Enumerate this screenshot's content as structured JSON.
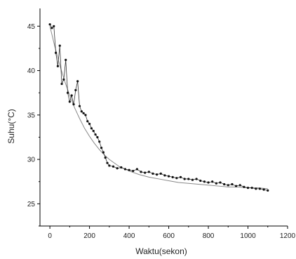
{
  "chart_data": {
    "type": "scatter",
    "xlabel": "Waktu(sekon)",
    "ylabel": "Suhu(°C)",
    "xlim": [
      -50,
      1200
    ],
    "ylim": [
      22.5,
      47
    ],
    "xticks": [
      0,
      200,
      400,
      600,
      800,
      1000,
      1200
    ],
    "yticks": [
      25,
      30,
      35,
      40,
      45
    ],
    "grid": false,
    "legend": "none",
    "colors": {
      "points": "#111111",
      "line": "#333333",
      "fit": "#888888",
      "axis": "#000000"
    },
    "series": [
      {
        "kind": "measured",
        "x": [
          0,
          10,
          20,
          30,
          40,
          50,
          60,
          70,
          80,
          90,
          100,
          110,
          120,
          130,
          140,
          150,
          160,
          170,
          180,
          190,
          200,
          210,
          220,
          230,
          240,
          250,
          260,
          270,
          280,
          290,
          300,
          320,
          340,
          360,
          380,
          400,
          420,
          440,
          460,
          480,
          500,
          520,
          540,
          560,
          580,
          600,
          620,
          640,
          660,
          680,
          700,
          720,
          740,
          760,
          780,
          800,
          820,
          840,
          860,
          880,
          900,
          920,
          940,
          960,
          980,
          1000,
          1020,
          1040,
          1060,
          1080,
          1100
        ],
        "y": [
          45.2,
          44.8,
          45.0,
          42.0,
          40.5,
          42.8,
          38.5,
          39.0,
          41.2,
          37.5,
          36.5,
          37.2,
          36.2,
          37.8,
          38.8,
          36.0,
          35.4,
          35.2,
          35.0,
          34.3,
          34.0,
          33.5,
          33.2,
          32.8,
          32.5,
          32.0,
          31.3,
          30.8,
          30.2,
          29.6,
          29.3,
          29.2,
          29.0,
          29.1,
          28.9,
          28.8,
          28.7,
          28.9,
          28.6,
          28.5,
          28.6,
          28.4,
          28.3,
          28.4,
          28.2,
          28.1,
          28.0,
          27.9,
          28.0,
          27.8,
          27.8,
          27.7,
          27.8,
          27.6,
          27.5,
          27.4,
          27.5,
          27.3,
          27.4,
          27.2,
          27.1,
          27.2,
          27.0,
          27.1,
          26.9,
          26.8,
          26.8,
          26.7,
          26.7,
          26.6,
          26.5
        ]
      },
      {
        "kind": "fit",
        "x": [
          0,
          25,
          50,
          75,
          100,
          125,
          150,
          175,
          200,
          225,
          250,
          275,
          300,
          350,
          400,
          450,
          500,
          550,
          600,
          650,
          700,
          750,
          800,
          850,
          900,
          950,
          1000,
          1050,
          1100
        ],
        "y": [
          45.0,
          42.7,
          40.6,
          38.8,
          37.2,
          35.8,
          34.6,
          33.5,
          32.6,
          31.8,
          31.1,
          30.5,
          30.0,
          29.2,
          28.7,
          28.3,
          28.0,
          27.8,
          27.6,
          27.4,
          27.3,
          27.2,
          27.1,
          27.0,
          26.9,
          26.9,
          26.8,
          26.8,
          26.7
        ]
      }
    ]
  }
}
